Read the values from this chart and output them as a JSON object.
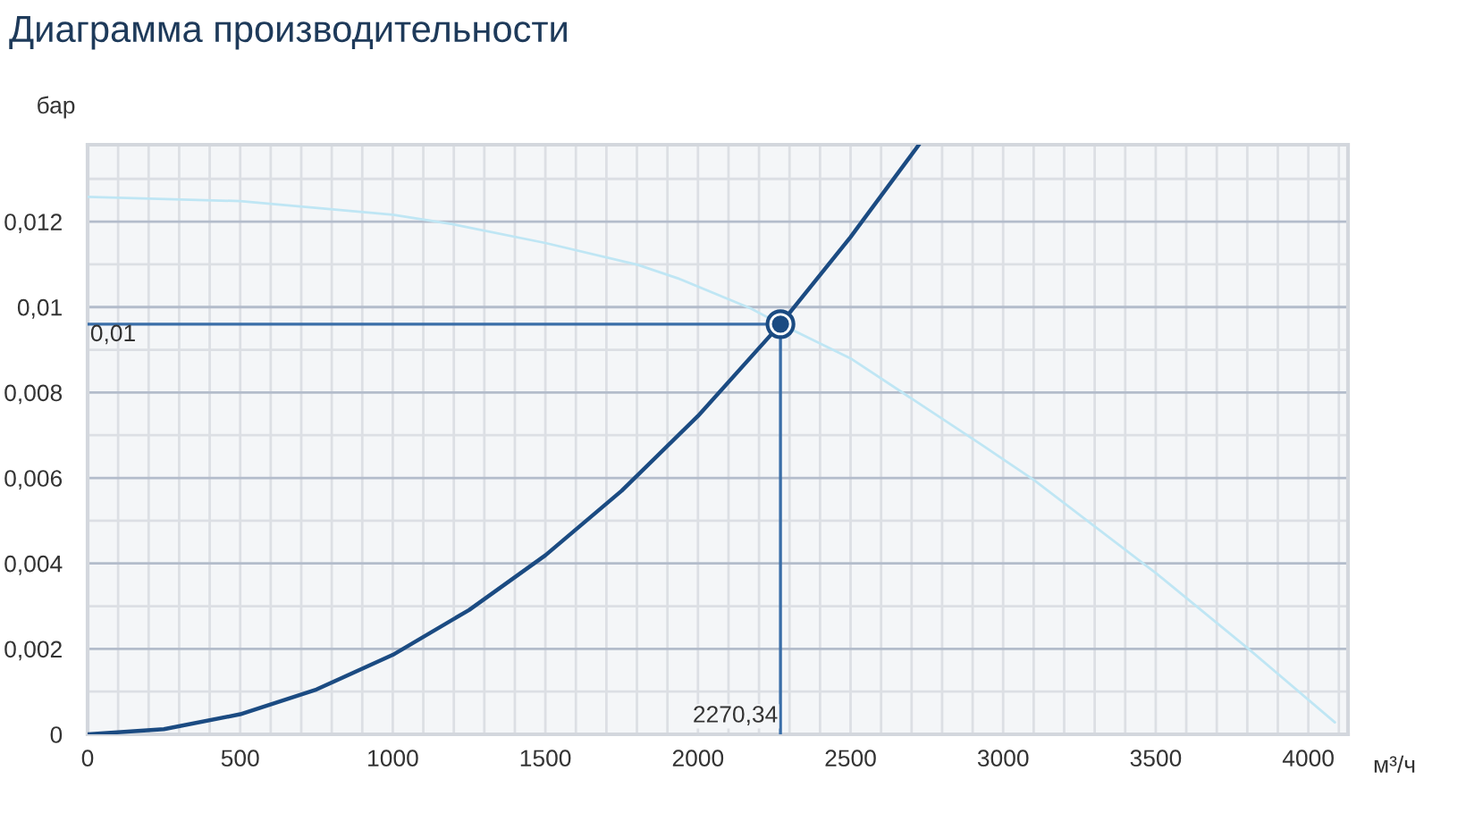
{
  "chart_data": {
    "type": "line",
    "title": "Диаграмма производительности",
    "xlabel": "м³/ч",
    "ylabel": "бар",
    "series": [
      {
        "color": "#bfe6f4",
        "x": [
          0,
          500,
          1000,
          1195,
          1500,
          1802,
          1939,
          2173,
          2270.34,
          2500,
          2935,
          3101,
          3501,
          3804,
          4087
        ],
        "values": [
          0.01258,
          0.01248,
          0.01216,
          0.01194,
          0.0115,
          0.01099,
          0.01066,
          0.00997,
          0.0096,
          0.0088,
          0.00675,
          0.00595,
          0.00377,
          0.002,
          0.00028
        ]
      },
      {
        "color": "#1b4b82",
        "x": [
          0,
          250,
          500,
          750,
          1000,
          1250,
          1500,
          1750,
          2000,
          2270.34,
          2500,
          2724
        ],
        "values": [
          0,
          0.00012,
          0.00047,
          0.00105,
          0.00186,
          0.00291,
          0.00419,
          0.0057,
          0.00745,
          0.0096,
          0.01164,
          0.0138
        ]
      },
      {
        "type": "scatter",
        "color": "#1b4b82",
        "marker": "circle",
        "x": [
          2270.34
        ],
        "values": [
          0.0096
        ]
      }
    ],
    "ref_lines": [
      {
        "axis": "y",
        "value": 0.0096,
        "label": "0,01",
        "color": "#3a6ea8"
      },
      {
        "axis": "x",
        "value": 2270.34,
        "label": "2270,34",
        "color": "#3a6ea8"
      }
    ],
    "xlim": [
      0,
      4130
    ],
    "ylim": [
      0,
      0.0138
    ],
    "xticks": [
      0,
      {
        "value": 100,
        "label": null
      },
      {
        "value": 200,
        "label": null
      },
      {
        "value": 300,
        "label": null
      },
      {
        "value": 400,
        "label": null
      },
      500,
      {
        "value": 600,
        "label": null
      },
      {
        "value": 700,
        "label": null
      },
      {
        "value": 800,
        "label": null
      },
      {
        "value": 900,
        "label": null
      },
      1000,
      {
        "value": 1100,
        "label": null
      },
      {
        "value": 1200,
        "label": null
      },
      {
        "value": 1300,
        "label": null
      },
      {
        "value": 1400,
        "label": null
      },
      1500,
      {
        "value": 1600,
        "label": null
      },
      {
        "value": 1700,
        "label": null
      },
      {
        "value": 1800,
        "label": null
      },
      {
        "value": 1900,
        "label": null
      },
      2000,
      {
        "value": 2100,
        "label": null
      },
      {
        "value": 2200,
        "label": null
      },
      {
        "value": 2300,
        "label": null
      },
      {
        "value": 2400,
        "label": null
      },
      2500,
      {
        "value": 2600,
        "label": null
      },
      {
        "value": 2700,
        "label": null
      },
      {
        "value": 2800,
        "label": null
      },
      {
        "value": 2900,
        "label": null
      },
      3000,
      {
        "value": 3100,
        "label": null
      },
      {
        "value": 3200,
        "label": null
      },
      {
        "value": 3300,
        "label": null
      },
      {
        "value": 3400,
        "label": null
      },
      3500,
      {
        "value": 3600,
        "label": null
      },
      {
        "value": 3700,
        "label": null
      },
      {
        "value": 3800,
        "label": null
      },
      {
        "value": 3900,
        "label": null
      },
      4000,
      {
        "value": 4100,
        "label": null
      }
    ],
    "yticks": [
      0,
      {
        "value": 0.001,
        "label": null
      },
      {
        "value": 0.002,
        "label": "0,002"
      },
      {
        "value": 0.003,
        "label": null
      },
      {
        "value": 0.004,
        "label": "0,004"
      },
      {
        "value": 0.005,
        "label": null
      },
      {
        "value": 0.006,
        "label": "0,006"
      },
      {
        "value": 0.007,
        "label": null
      },
      {
        "value": 0.008,
        "label": "0,008"
      },
      {
        "value": 0.009,
        "label": null
      },
      {
        "value": 0.01,
        "label": "0,01"
      },
      {
        "value": 0.011,
        "label": null
      },
      {
        "value": 0.012,
        "label": "0,012"
      },
      {
        "value": 0.013,
        "label": null
      }
    ],
    "grid": true,
    "line_style": "solid",
    "marker": "none"
  }
}
